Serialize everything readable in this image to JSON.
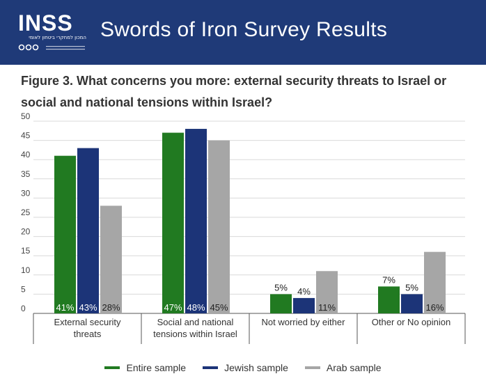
{
  "header": {
    "logo_text": "INSS",
    "logo_subtext": "המכון למחקרי ביטחון לאומי",
    "title": "Swords of Iron Survey Results"
  },
  "colors": {
    "header_bg": "#1f3a78",
    "entire": "#217a21",
    "jewish": "#1c3478",
    "arab": "#a6a6a6"
  },
  "chart_data": {
    "type": "bar",
    "title": "Figure 3. What concerns you more: external security threats to Israel or social and national tensions within Israel?",
    "categories": [
      "External security threats",
      "Social and national tensions within Israel",
      "Not worried by either",
      "Other or No opinion"
    ],
    "series": [
      {
        "name": "Entire sample",
        "values": [
          41,
          47,
          5,
          7
        ],
        "labels": [
          "41%",
          "47%",
          "5%",
          "7%"
        ]
      },
      {
        "name": "Jewish sample",
        "values": [
          43,
          48,
          4,
          5
        ],
        "labels": [
          "43%",
          "48%",
          "4%",
          "5%"
        ]
      },
      {
        "name": "Arab sample",
        "values": [
          28,
          45,
          11,
          16
        ],
        "labels": [
          "28%",
          "45%",
          "11%",
          "16%"
        ]
      }
    ],
    "ylim": [
      0,
      50
    ],
    "yticks": [
      "0",
      "5",
      "10",
      "15",
      "20",
      "25",
      "30",
      "35",
      "40",
      "45",
      "50"
    ],
    "grid": true,
    "legend": "bottom"
  }
}
